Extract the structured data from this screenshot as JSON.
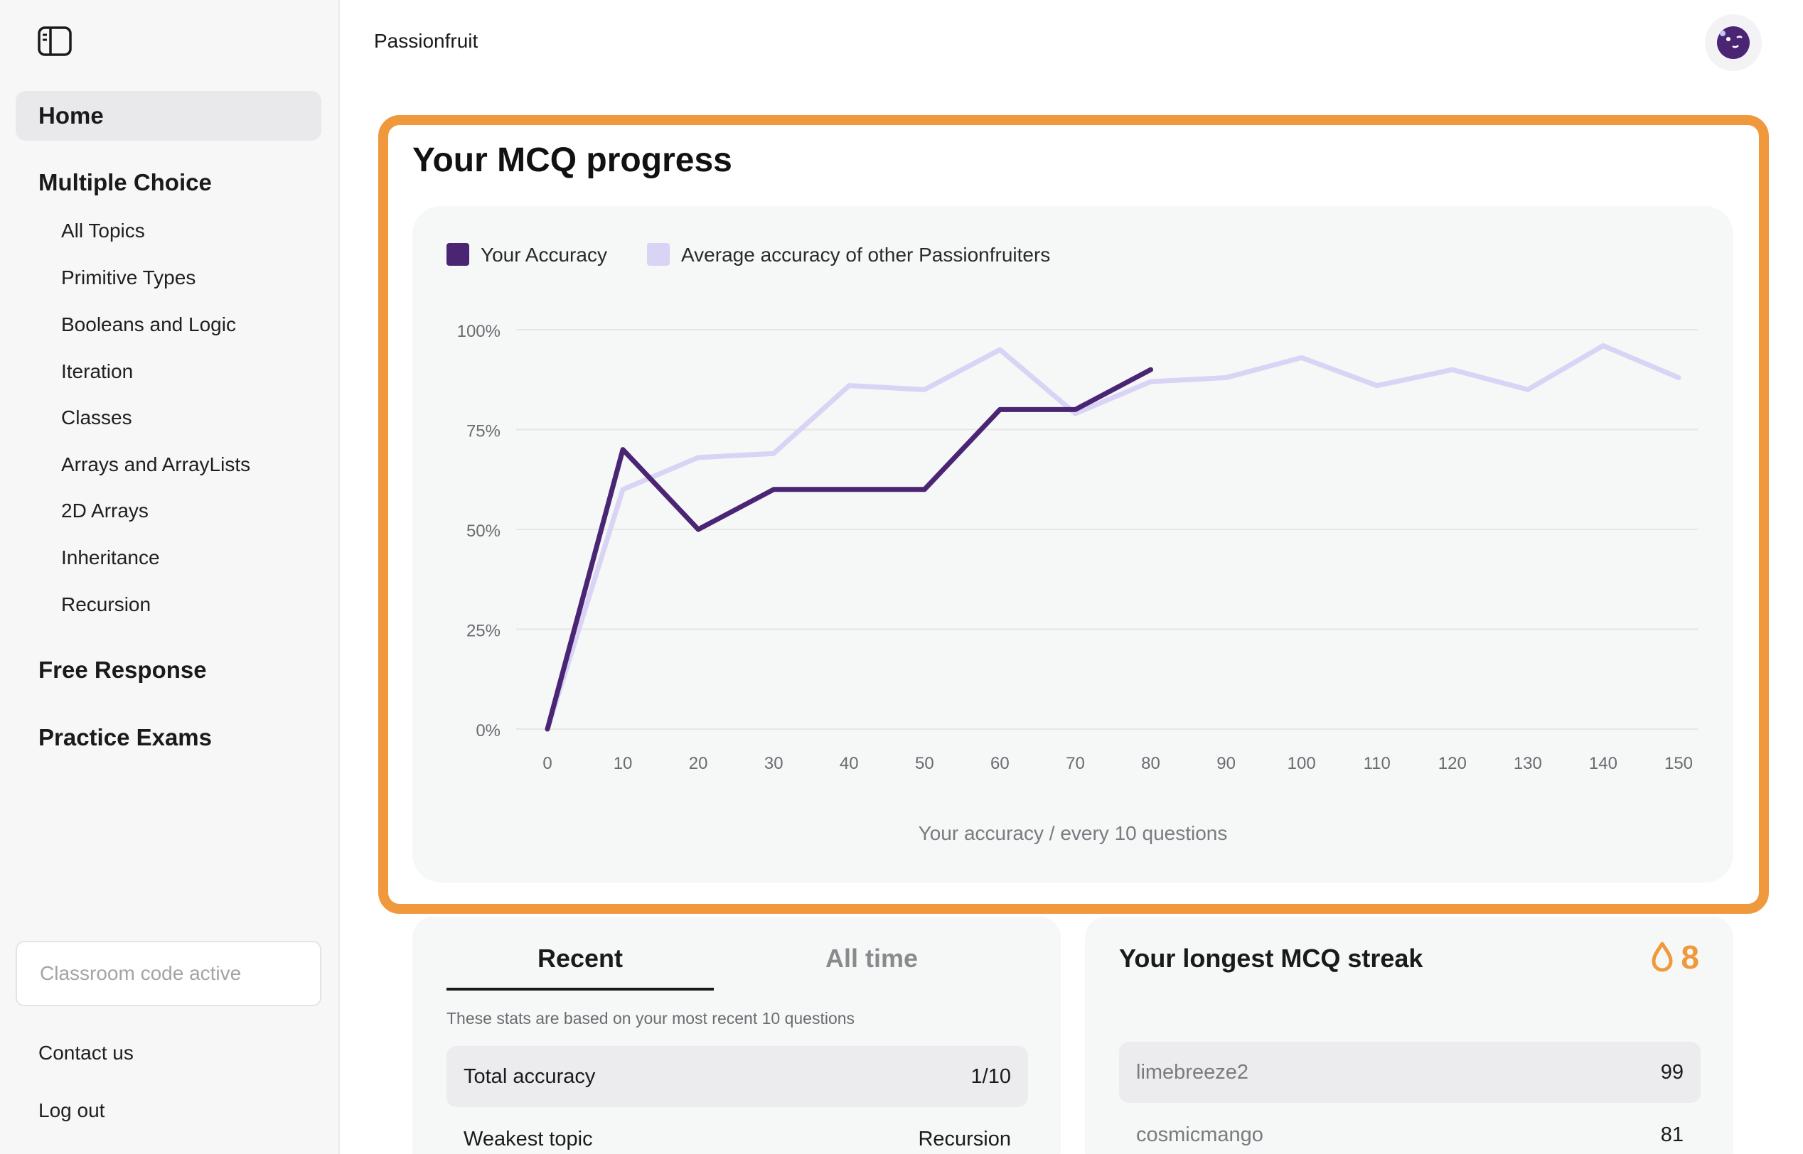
{
  "app": {
    "title": "Passionfruit"
  },
  "sidebar": {
    "home": "Home",
    "multiple_choice": {
      "heading": "Multiple Choice",
      "items": [
        "All Topics",
        "Primitive Types",
        "Booleans and Logic",
        "Iteration",
        "Classes",
        "Arrays and ArrayLists",
        "2D Arrays",
        "Inheritance",
        "Recursion"
      ]
    },
    "free_response": "Free Response",
    "practice_exams": "Practice Exams",
    "classroom_code": "Classroom code active",
    "contact": "Contact us",
    "logout": "Log out"
  },
  "progress": {
    "title": "Your MCQ progress"
  },
  "chart_data": {
    "type": "line",
    "legend_position": "top-left",
    "grid": true,
    "xlabel": "Your accuracy / every 10 questions",
    "ylabel": "",
    "x_ticks": [
      0,
      10,
      20,
      30,
      40,
      50,
      60,
      70,
      80,
      90,
      100,
      110,
      120,
      130,
      140,
      150
    ],
    "y_ticks": [
      "0%",
      "25%",
      "50%",
      "75%",
      "100%"
    ],
    "ylim": [
      0,
      100
    ],
    "xlim": [
      0,
      150
    ],
    "series": [
      {
        "name": "Your Accuracy",
        "color": "#4a2574",
        "x": [
          0,
          10,
          20,
          30,
          40,
          50,
          60,
          70,
          80
        ],
        "values": [
          0,
          70,
          50,
          60,
          60,
          60,
          80,
          80,
          90
        ]
      },
      {
        "name": "Average accuracy of other Passionfruiters",
        "color": "#d9d3f5",
        "x": [
          0,
          10,
          20,
          30,
          40,
          50,
          60,
          70,
          80,
          90,
          100,
          110,
          120,
          130,
          140,
          150
        ],
        "values": [
          0,
          60,
          68,
          69,
          86,
          85,
          95,
          79,
          87,
          88,
          93,
          86,
          90,
          85,
          96,
          88
        ]
      }
    ]
  },
  "stats": {
    "tabs": [
      "Recent",
      "All time"
    ],
    "note": "These stats are based on your most recent 10 questions",
    "rows": [
      {
        "label": "Total accuracy",
        "value": "1/10"
      },
      {
        "label": "Weakest topic",
        "value": "Recursion"
      }
    ]
  },
  "streak": {
    "title": "Your longest MCQ streak",
    "count": "8",
    "leaderboard": [
      {
        "name": "limebreeze2",
        "score": "99"
      },
      {
        "name": "cosmicmango",
        "score": "81"
      }
    ]
  },
  "colors": {
    "accent_orange": "#f0993c",
    "primary_purple": "#4a2574",
    "light_purple": "#d9d3f5"
  }
}
